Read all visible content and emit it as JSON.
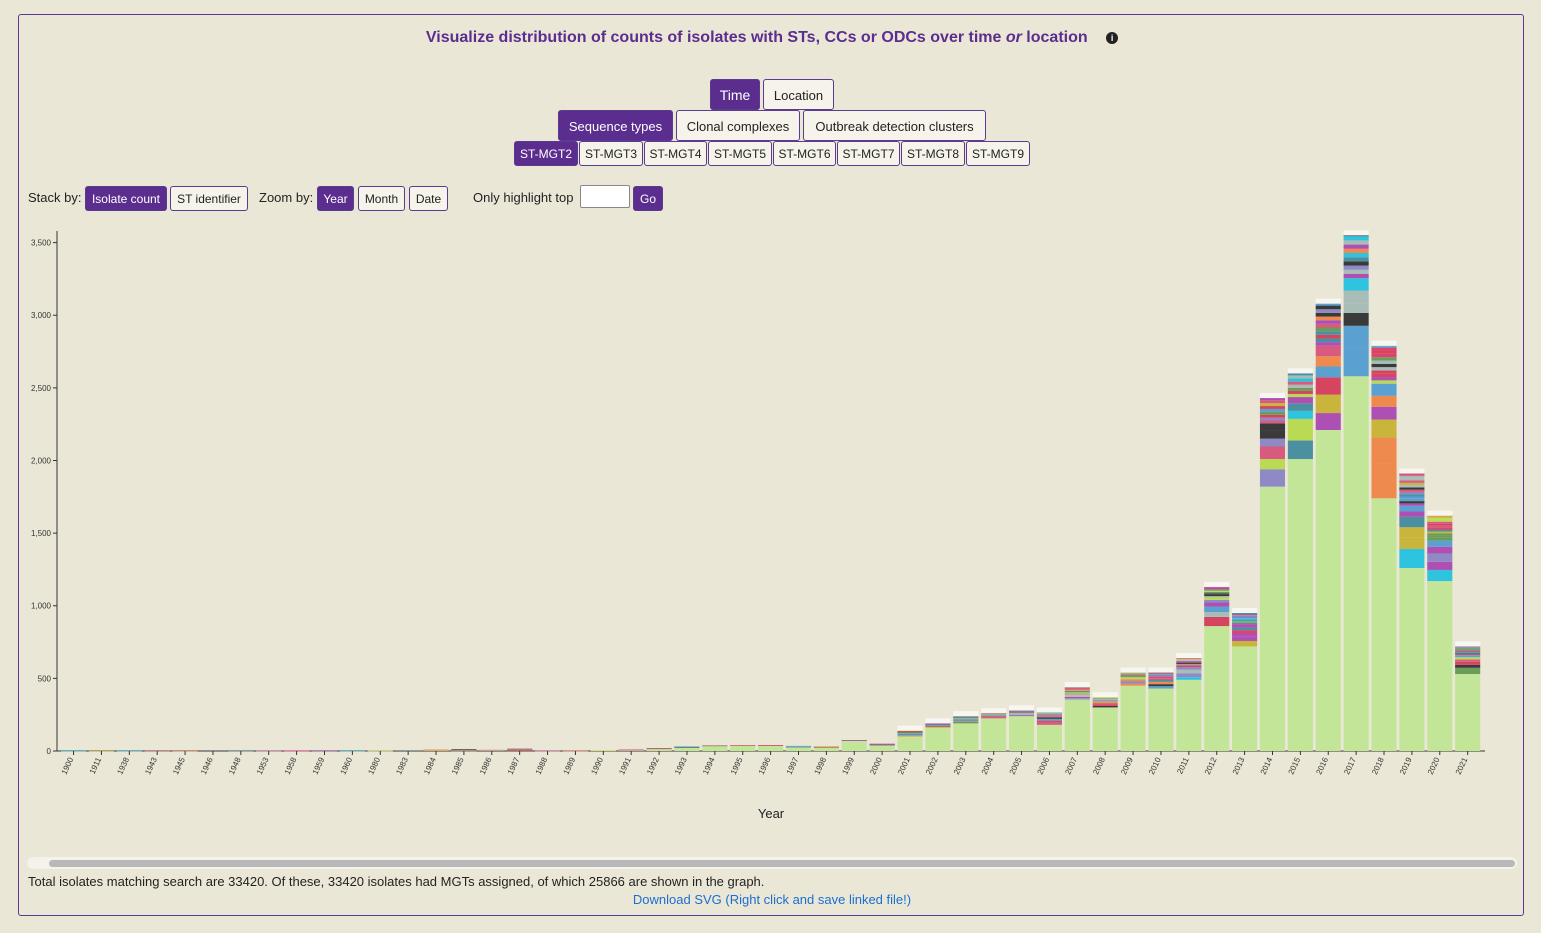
{
  "header": {
    "title_pre": "Visualize distribution of counts of isolates with STs, CCs or ODCs over time ",
    "title_or": "or",
    "title_post": " location",
    "info_glyph": "i"
  },
  "mode_tabs": [
    "Time",
    "Location"
  ],
  "type_tabs": [
    "Sequence types",
    "Clonal complexes",
    "Outbreak detection clusters"
  ],
  "mgt_tabs": [
    "ST-MGT2",
    "ST-MGT3",
    "ST-MGT4",
    "ST-MGT5",
    "ST-MGT6",
    "ST-MGT7",
    "ST-MGT8",
    "ST-MGT9"
  ],
  "controls": {
    "stack_label": "Stack by:",
    "stack_options": [
      "Isolate count",
      "ST identifier"
    ],
    "zoom_label": "Zoom by:",
    "zoom_options": [
      "Year",
      "Month",
      "Date"
    ],
    "highlight_label": "Only highlight top",
    "highlight_value": "",
    "go_label": "Go"
  },
  "chart_data": {
    "type": "bar",
    "stacked": true,
    "xlabel": "Year",
    "ylabel": "",
    "ylim": [
      0,
      3580
    ],
    "yticks": [
      0,
      500,
      1000,
      1500,
      2000,
      2500,
      3000,
      3500
    ],
    "ytick_labels": [
      "0",
      "500",
      "1,000",
      "1,500",
      "2,000",
      "2,500",
      "3,000",
      "3,500"
    ],
    "categories": [
      "1900",
      "1911",
      "1938",
      "1943",
      "1945",
      "1946",
      "1948",
      "1953",
      "1958",
      "1959",
      "1960",
      "1980",
      "1983",
      "1984",
      "1985",
      "1986",
      "1987",
      "1988",
      "1989",
      "1990",
      "1991",
      "1992",
      "1993",
      "1994",
      "1995",
      "1996",
      "1997",
      "1998",
      "1999",
      "2000",
      "2001",
      "2002",
      "2003",
      "2004",
      "2005",
      "2006",
      "2007",
      "2008",
      "2009",
      "2010",
      "2011",
      "2012",
      "2013",
      "2014",
      "2015",
      "2016",
      "2017",
      "2018",
      "2019",
      "2020",
      "2021"
    ],
    "totals": [
      1,
      1,
      1,
      1,
      1,
      1,
      1,
      2,
      4,
      1,
      1,
      3,
      6,
      10,
      12,
      8,
      16,
      2,
      2,
      4,
      10,
      20,
      30,
      40,
      40,
      40,
      35,
      30,
      75,
      50,
      140,
      190,
      240,
      260,
      280,
      265,
      440,
      370,
      540,
      540,
      640,
      1130,
      950,
      2430,
      2600,
      3080,
      3550,
      2790,
      1910,
      1620,
      720
    ],
    "base_values": [
      0,
      0,
      0,
      0,
      0,
      0,
      0,
      0,
      0,
      0,
      0,
      0,
      3,
      6,
      0,
      6,
      0,
      0,
      0,
      2,
      8,
      16,
      25,
      36,
      38,
      38,
      25,
      26,
      72,
      40,
      100,
      160,
      190,
      225,
      240,
      180,
      350,
      300,
      450,
      430,
      490,
      860,
      720,
      1820,
      2010,
      2210,
      2580,
      1740,
      1260,
      1170,
      530
    ],
    "series_colors": {
      "base": "#c2e597",
      "others": [
        "#d6455f",
        "#4a90a0",
        "#ad4fb3",
        "#c9b53b",
        "#a8bdb8",
        "#ef8a4f",
        "#e0416e",
        "#2ec4e0",
        "#6a9c5a",
        "#8f8ac6",
        "#3a3a3a",
        "#bada55",
        "#d85a7f",
        "#5aa0d0"
      ]
    }
  },
  "summary": {
    "total_text": "Total isolates matching search are 33420. Of these, 33420 isolates had MGTs assigned, of which 25866 are shown in the graph.",
    "download_text": "Download SVG (Right click and save linked file!)"
  }
}
